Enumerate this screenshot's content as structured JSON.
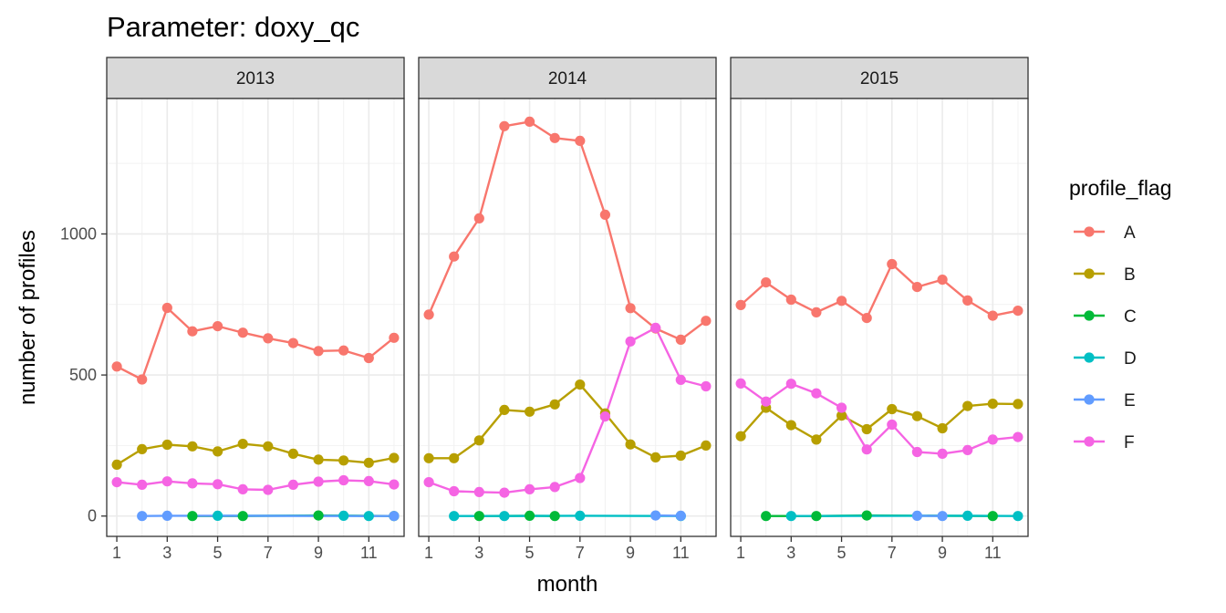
{
  "chart_data": {
    "type": "line",
    "title": "Parameter:  doxy_qc",
    "xlabel": "month",
    "ylabel": "number of profiles",
    "x_ticks": [
      1,
      3,
      5,
      7,
      9,
      11
    ],
    "y_ticks": [
      0,
      500,
      1000
    ],
    "xlim": [
      0.6,
      12.4
    ],
    "ylim": [
      -72,
      1480
    ],
    "legend_title": "profile_flag",
    "colors": {
      "A": "#F8766D",
      "B": "#B79F00",
      "C": "#00BA38",
      "D": "#00BFC4",
      "E": "#619CFF",
      "F": "#F564E3"
    },
    "panels": [
      {
        "label": "2013",
        "series": [
          {
            "name": "A",
            "points": [
              [
                1,
                530
              ],
              [
                2,
                484
              ],
              [
                3,
                738
              ],
              [
                4,
                655
              ],
              [
                5,
                673
              ],
              [
                6,
                650
              ],
              [
                7,
                630
              ],
              [
                8,
                613
              ],
              [
                9,
                585
              ],
              [
                10,
                587
              ],
              [
                11,
                560
              ],
              [
                12,
                632
              ]
            ]
          },
          {
            "name": "B",
            "points": [
              [
                1,
                182
              ],
              [
                2,
                237
              ],
              [
                3,
                253
              ],
              [
                4,
                247
              ],
              [
                5,
                229
              ],
              [
                6,
                256
              ],
              [
                7,
                247
              ],
              [
                8,
                221
              ],
              [
                9,
                200
              ],
              [
                10,
                197
              ],
              [
                11,
                189
              ],
              [
                12,
                206
              ]
            ]
          },
          {
            "name": "C",
            "points": [
              [
                4,
                0
              ],
              [
                6,
                0
              ],
              [
                9,
                2
              ],
              [
                12,
                0
              ]
            ]
          },
          {
            "name": "D",
            "points": [
              [
                5,
                1
              ],
              [
                10,
                1
              ],
              [
                11,
                0
              ]
            ]
          },
          {
            "name": "E",
            "points": [
              [
                2,
                0
              ],
              [
                3,
                1
              ],
              [
                12,
                0
              ]
            ]
          },
          {
            "name": "F",
            "points": [
              [
                1,
                120
              ],
              [
                2,
                111
              ],
              [
                3,
                123
              ],
              [
                4,
                116
              ],
              [
                5,
                113
              ],
              [
                6,
                95
              ],
              [
                7,
                93
              ],
              [
                8,
                111
              ],
              [
                9,
                122
              ],
              [
                10,
                127
              ],
              [
                11,
                124
              ],
              [
                12,
                112
              ]
            ]
          }
        ]
      },
      {
        "label": "2014",
        "series": [
          {
            "name": "A",
            "points": [
              [
                1,
                714
              ],
              [
                2,
                920
              ],
              [
                3,
                1055
              ],
              [
                4,
                1382
              ],
              [
                5,
                1398
              ],
              [
                6,
                1340
              ],
              [
                7,
                1330
              ],
              [
                8,
                1068
              ],
              [
                9,
                737
              ],
              [
                10,
                665
              ],
              [
                11,
                625
              ],
              [
                12,
                692
              ]
            ]
          },
          {
            "name": "B",
            "points": [
              [
                1,
                205
              ],
              [
                2,
                205
              ],
              [
                3,
                268
              ],
              [
                4,
                376
              ],
              [
                5,
                370
              ],
              [
                6,
                396
              ],
              [
                7,
                466
              ],
              [
                8,
                364
              ],
              [
                9,
                254
              ],
              [
                10,
                208
              ],
              [
                11,
                214
              ],
              [
                12,
                250
              ]
            ]
          },
          {
            "name": "C",
            "points": [
              [
                3,
                0
              ],
              [
                5,
                1
              ],
              [
                6,
                0
              ]
            ]
          },
          {
            "name": "D",
            "points": [
              [
                2,
                0
              ],
              [
                4,
                0
              ],
              [
                7,
                1
              ],
              [
                11,
                0
              ]
            ]
          },
          {
            "name": "E",
            "points": [
              [
                10,
                2
              ],
              [
                11,
                1
              ]
            ]
          },
          {
            "name": "F",
            "points": [
              [
                1,
                120
              ],
              [
                2,
                88
              ],
              [
                3,
                85
              ],
              [
                4,
                83
              ],
              [
                5,
                95
              ],
              [
                6,
                103
              ],
              [
                7,
                135
              ],
              [
                8,
                353
              ],
              [
                9,
                619
              ],
              [
                10,
                667
              ],
              [
                11,
                483
              ],
              [
                12,
                460
              ]
            ]
          }
        ]
      },
      {
        "label": "2015",
        "series": [
          {
            "name": "A",
            "points": [
              [
                1,
                748
              ],
              [
                2,
                828
              ],
              [
                3,
                767
              ],
              [
                4,
                722
              ],
              [
                5,
                763
              ],
              [
                6,
                702
              ],
              [
                7,
                893
              ],
              [
                8,
                812
              ],
              [
                9,
                838
              ],
              [
                10,
                764
              ],
              [
                11,
                710
              ],
              [
                12,
                728
              ]
            ]
          },
          {
            "name": "B",
            "points": [
              [
                1,
                283
              ],
              [
                2,
                384
              ],
              [
                3,
                322
              ],
              [
                4,
                271
              ],
              [
                5,
                356
              ],
              [
                6,
                308
              ],
              [
                7,
                379
              ],
              [
                8,
                354
              ],
              [
                9,
                311
              ],
              [
                10,
                390
              ],
              [
                11,
                398
              ],
              [
                12,
                397
              ]
            ]
          },
          {
            "name": "C",
            "points": [
              [
                2,
                0
              ],
              [
                4,
                0
              ],
              [
                6,
                2
              ],
              [
                11,
                0
              ]
            ]
          },
          {
            "name": "D",
            "points": [
              [
                3,
                0
              ],
              [
                10,
                1
              ],
              [
                12,
                0
              ]
            ]
          },
          {
            "name": "E",
            "points": [
              [
                8,
                1
              ],
              [
                9,
                0
              ]
            ]
          },
          {
            "name": "F",
            "points": [
              [
                1,
                470
              ],
              [
                2,
                406
              ],
              [
                3,
                469
              ],
              [
                4,
                435
              ],
              [
                5,
                384
              ],
              [
                6,
                236
              ],
              [
                7,
                324
              ],
              [
                8,
                227
              ],
              [
                9,
                221
              ],
              [
                10,
                234
              ],
              [
                11,
                271
              ],
              [
                12,
                280
              ]
            ]
          }
        ]
      }
    ]
  }
}
